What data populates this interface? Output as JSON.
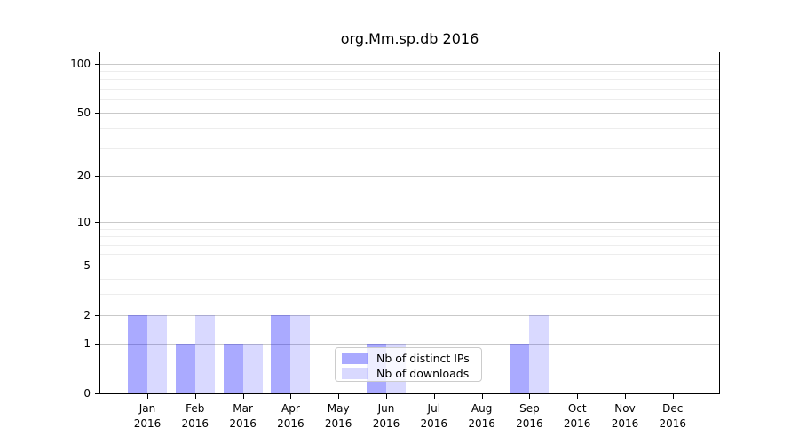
{
  "title": "org.Mm.sp.db 2016",
  "chart_data": {
    "type": "bar",
    "categories": [
      "Jan",
      "Feb",
      "Mar",
      "Apr",
      "May",
      "Jun",
      "Jul",
      "Aug",
      "Sep",
      "Oct",
      "Nov",
      "Dec"
    ],
    "category_year": "2016",
    "series": [
      {
        "name": "Nb of distinct IPs",
        "color": "#0000ff55",
        "values": [
          2,
          1,
          1,
          2,
          0,
          1,
          0,
          0,
          1,
          0,
          0,
          0
        ]
      },
      {
        "name": "Nb of downloads",
        "color": "#0000ff26",
        "values": [
          2,
          2,
          1,
          2,
          0,
          1,
          0,
          0,
          2,
          0,
          0,
          0
        ]
      }
    ],
    "yscale": "log1p",
    "ylim": [
      0,
      117
    ],
    "yticks": [
      0,
      1,
      2,
      5,
      10,
      20,
      50,
      100
    ],
    "yticks_minor": [
      3,
      4,
      6,
      7,
      8,
      9,
      30,
      40,
      60,
      70,
      80,
      90
    ],
    "grid": "horizontal",
    "legend_position": "inside lower center"
  },
  "colors": {
    "major_grid": "#c9c9c9",
    "minor_grid": "#ededed",
    "axis": "#000000",
    "text": "#000000",
    "legend_border": "#cccccc"
  }
}
